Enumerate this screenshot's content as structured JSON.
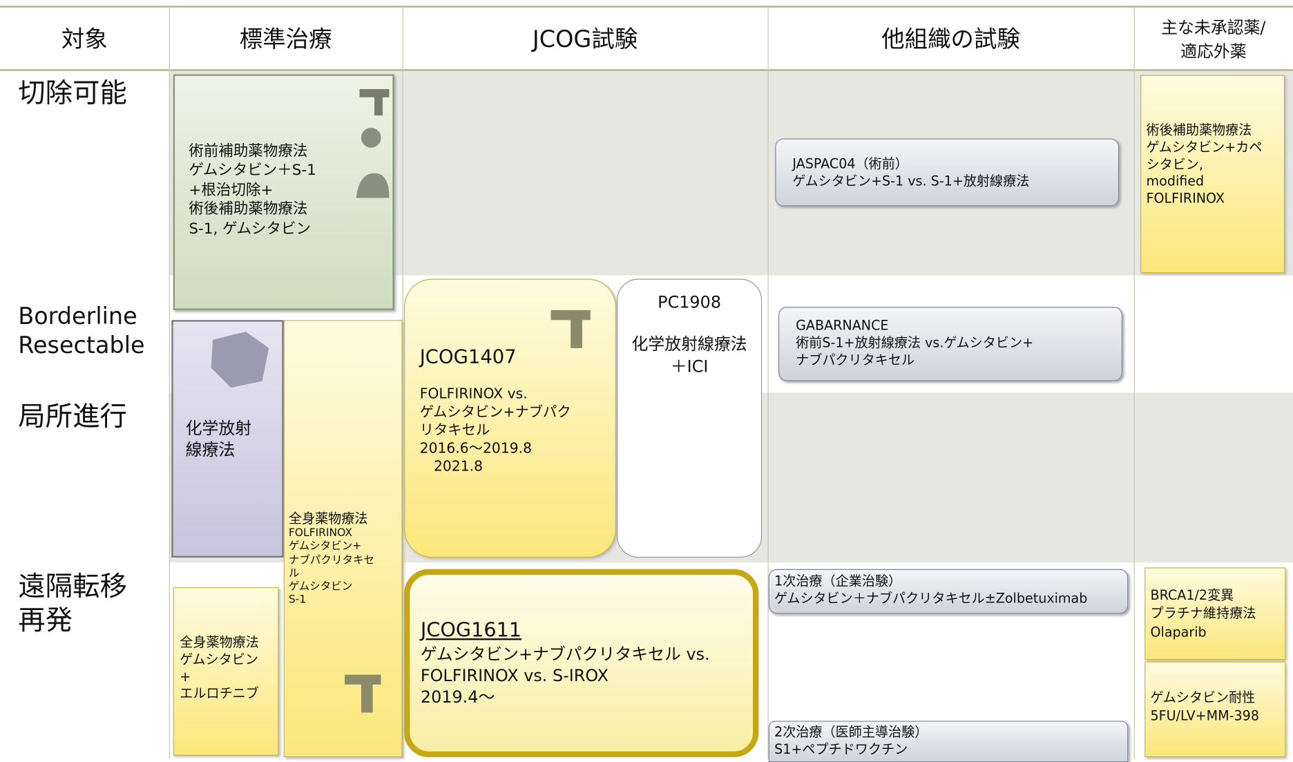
{
  "header": [
    {
      "lines": [
        "対象"
      ]
    },
    {
      "lines": [
        "標準治療"
      ]
    },
    {
      "lines": [
        "JCOG試験"
      ]
    },
    {
      "lines": [
        "他組織の試験"
      ]
    },
    {
      "lines": [
        "主な未承認薬/",
        "適応外薬"
      ]
    }
  ],
  "rows": [
    {
      "lines": [
        "切除可能"
      ]
    },
    {
      "lines": [
        "Borderline",
        "Resectable"
      ]
    },
    {
      "lines": [
        "局所進行"
      ]
    },
    {
      "lines": [
        "遠隔転移",
        "再発"
      ]
    }
  ],
  "boxes": [
    {
      "lines": [
        "術前補助薬物療法",
        "ゲムシタビン＋S-1",
        "+根治切除+",
        "術後補助薬物療法",
        "S-1, ゲムシタビン"
      ]
    },
    {
      "lines": [
        "化学放射",
        "線療法"
      ]
    },
    {
      "lines": [
        "全身薬物療法",
        "FOLFIRINOX",
        "ゲムシタビン+",
        "ナブパクリタキセ",
        "ル",
        "ゲムシタビン",
        "S-1"
      ]
    },
    {
      "lines": [
        "全身薬物療法",
        "ゲムシタビン",
        "+",
        "エルロチニブ"
      ]
    },
    {
      "lines": [
        "JCOG1407",
        "FOLFIRINOX vs.",
        "ゲムシタビン+ナブパク",
        "リタキセル",
        "2016.6～2019.8",
        "　2021.8"
      ]
    },
    {
      "lines": [
        "PC1908",
        "化学放射線療法",
        "＋ICI"
      ]
    },
    {
      "lines": [
        "JCOG1611",
        "ゲムシタビン+ナブパクリタキセル vs.",
        "FOLFIRINOX vs. S-IROX",
        "2019.4～"
      ]
    },
    {
      "lines": [
        "JASPAC04（術前）",
        "ゲムシタビン+S-1 vs. S-1+放射線療法"
      ]
    },
    {
      "lines": [
        "GABARNANCE",
        "術前S-1+放射線療法 vs.ゲムシタビン+",
        "ナブパクリタキセル"
      ]
    },
    {
      "lines": [
        "1次治療（企業治験）",
        "ゲムシタビン＋ナブパクリタキセル±Zolbetuximab"
      ]
    },
    {
      "lines": [
        "2次治療（医師主導治験）",
        "S1+ペプチドワクチン"
      ]
    },
    {
      "lines": [
        "術後補助薬物療法",
        "ゲムシタビン+カペ",
        "シタビン,",
        "modified",
        "FOLFIRINOX"
      ]
    },
    {
      "lines": [
        "BRCA1/2変異",
        "プラチナ維持療法",
        "Olaparib"
      ]
    },
    {
      "lines": [
        "ゲムシタビン耐性",
        "5FU/LV+MM-398"
      ]
    }
  ]
}
